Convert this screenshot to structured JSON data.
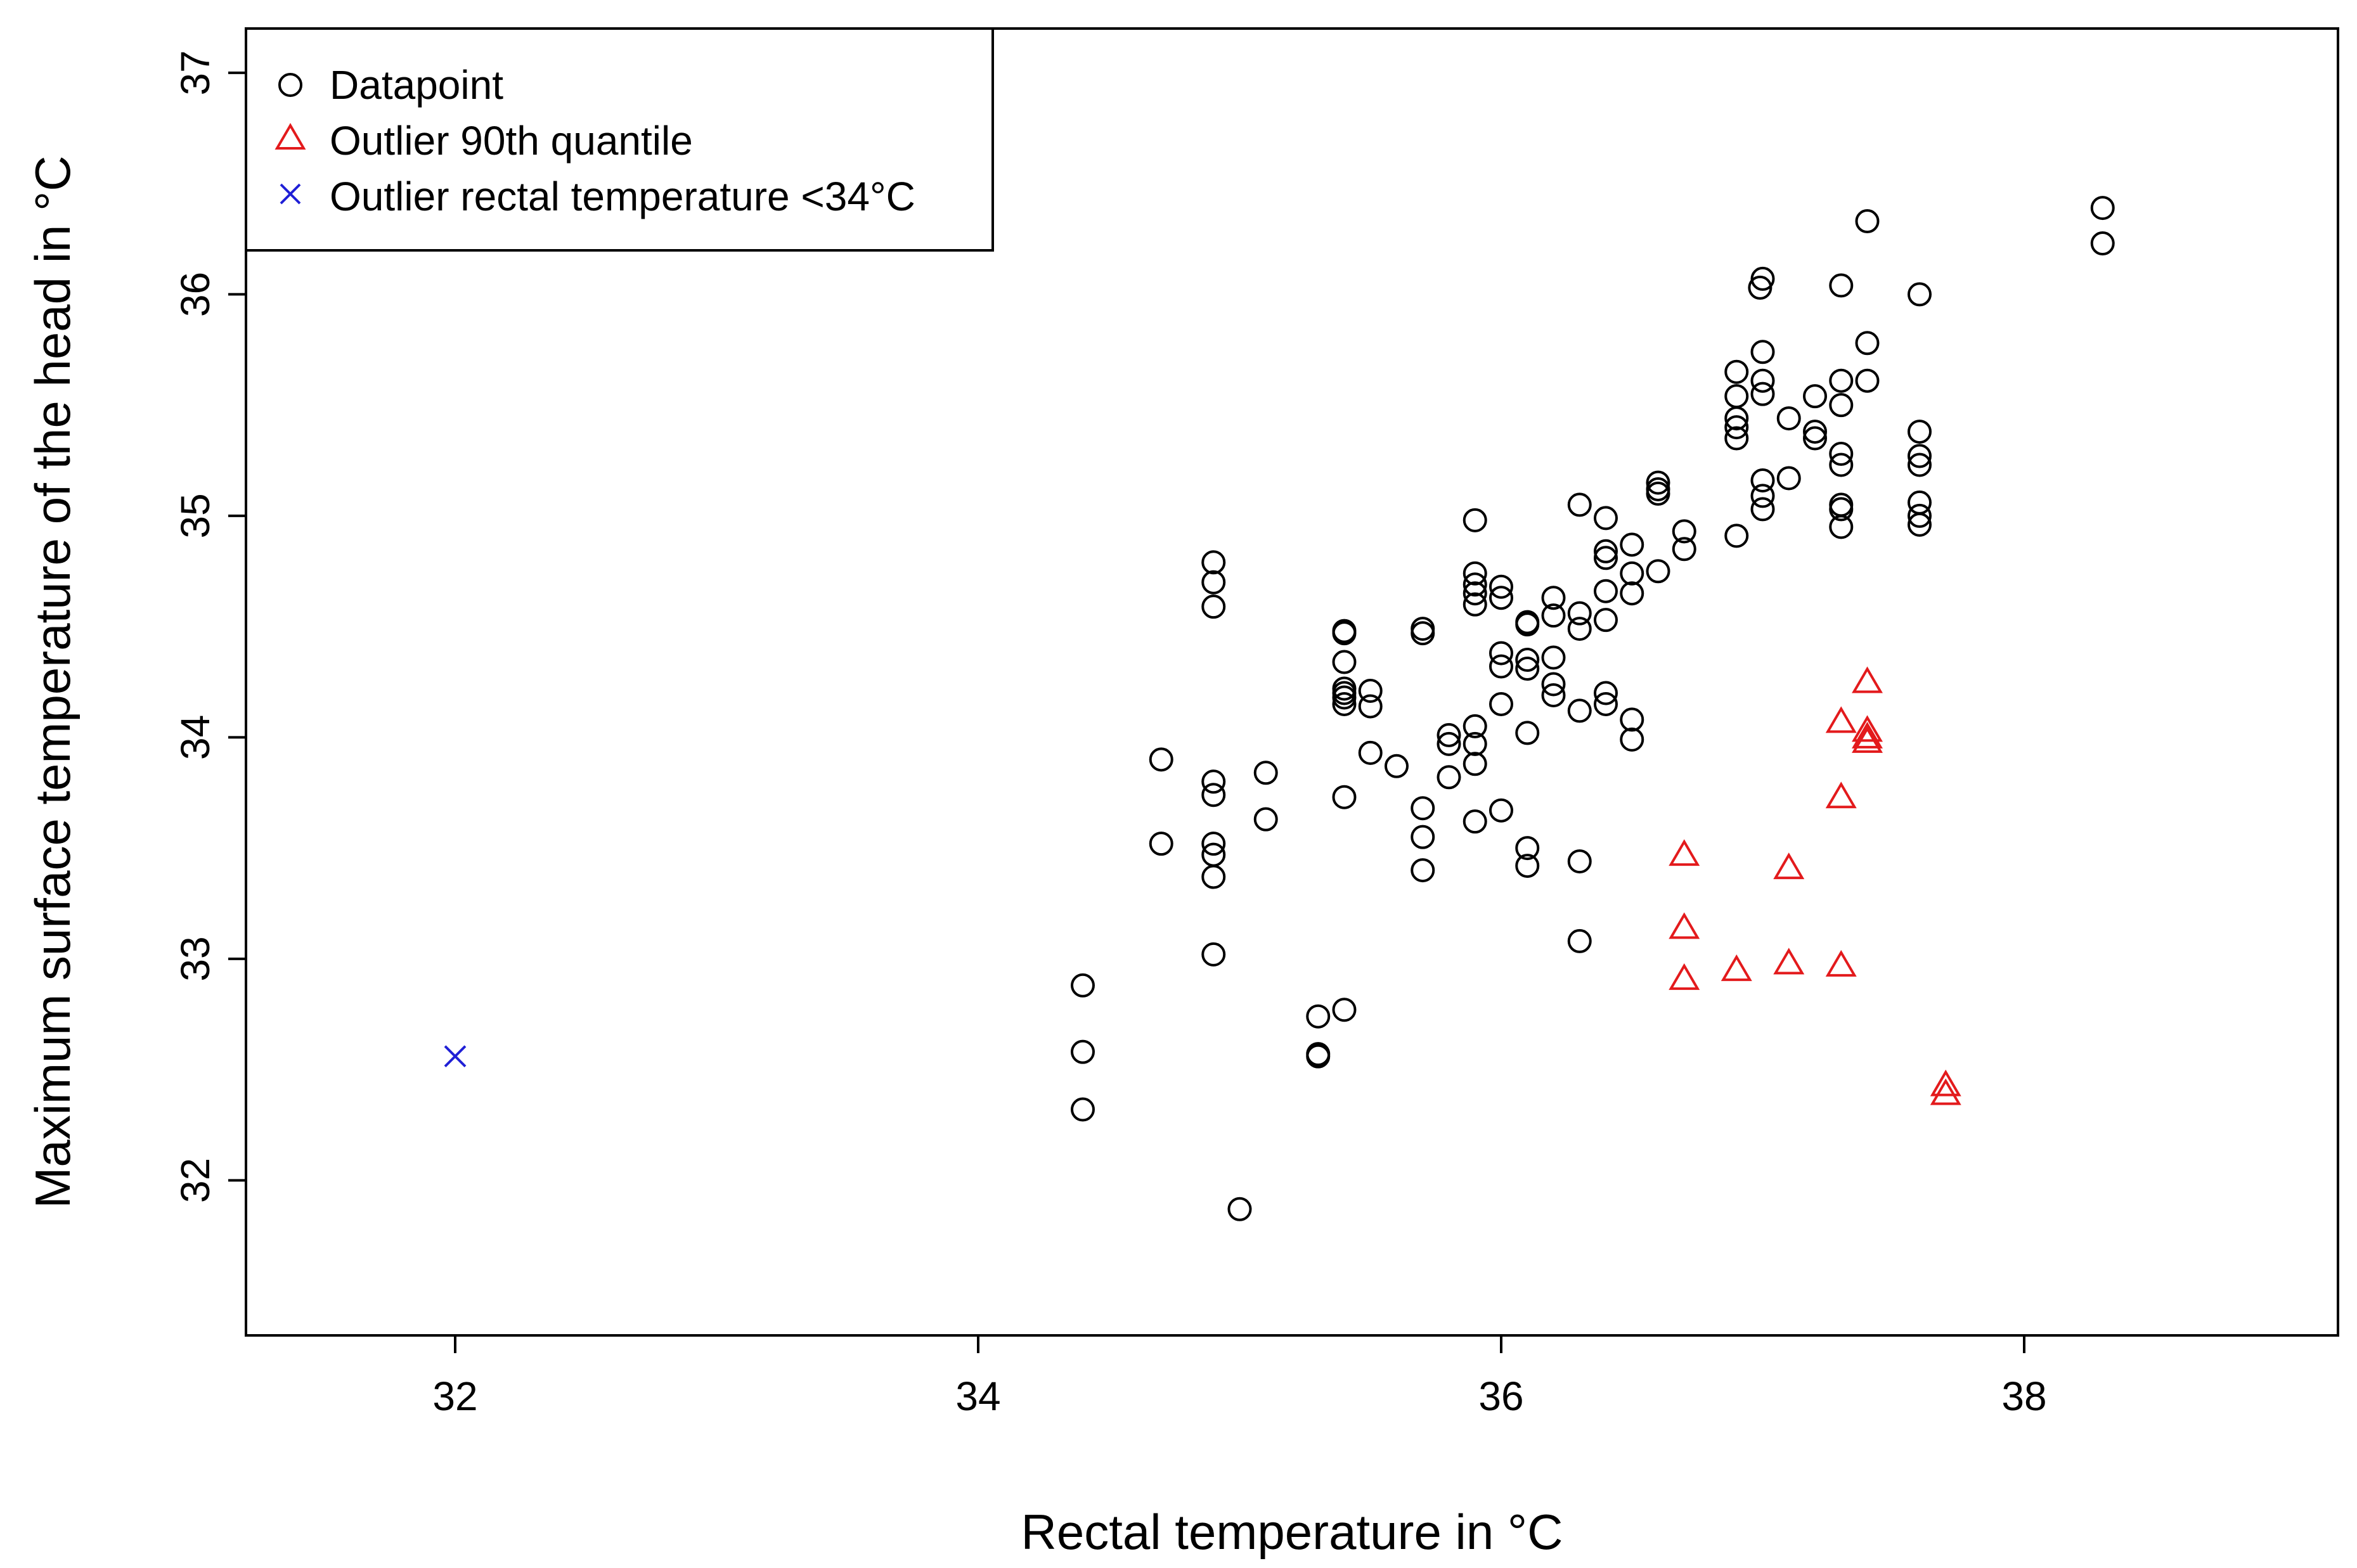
{
  "chart_data": {
    "type": "scatter",
    "title": "",
    "xlabel": "Rectal temperature in °C",
    "ylabel": "Maximum surface temperature of the head in °C",
    "xlim": [
      31.2,
      39.2
    ],
    "ylim": [
      31.3,
      37.2
    ],
    "xticks": [
      32,
      34,
      36,
      38
    ],
    "yticks": [
      32,
      33,
      34,
      35,
      36,
      37
    ],
    "grid": false,
    "legend_position": "top-left",
    "colors": {
      "datapoint": "#000000",
      "outlier_quantile": "#e31a1c",
      "outlier_rectal": "#1f1fd6"
    },
    "legend": [
      {
        "label": "Datapoint",
        "marker": "circle",
        "color": "#000000"
      },
      {
        "label": "Outlier 90th quantile",
        "marker": "triangle",
        "color": "#e31a1c"
      },
      {
        "label": "Outlier rectal temperature <34°C",
        "marker": "cross",
        "color": "#1f1fd6"
      }
    ],
    "series": [
      {
        "name": "Datapoint",
        "marker": "circle",
        "points": [
          [
            34.4,
            32.88
          ],
          [
            34.4,
            32.58
          ],
          [
            34.4,
            32.32
          ],
          [
            34.7,
            33.9
          ],
          [
            34.7,
            33.52
          ],
          [
            34.9,
            34.79
          ],
          [
            34.9,
            34.7
          ],
          [
            34.9,
            34.59
          ],
          [
            34.9,
            33.8
          ],
          [
            34.9,
            33.74
          ],
          [
            34.9,
            33.52
          ],
          [
            34.9,
            33.47
          ],
          [
            34.9,
            33.37
          ],
          [
            34.9,
            33.02
          ],
          [
            35.0,
            31.87
          ],
          [
            35.1,
            33.84
          ],
          [
            35.1,
            33.63
          ],
          [
            35.3,
            32.74
          ],
          [
            35.3,
            32.57
          ],
          [
            35.3,
            32.56
          ],
          [
            35.4,
            34.48
          ],
          [
            35.4,
            34.47
          ],
          [
            35.4,
            34.34
          ],
          [
            35.4,
            34.22
          ],
          [
            35.4,
            34.2
          ],
          [
            35.4,
            34.18
          ],
          [
            35.4,
            34.15
          ],
          [
            35.4,
            33.73
          ],
          [
            35.4,
            32.77
          ],
          [
            35.5,
            34.21
          ],
          [
            35.5,
            34.14
          ],
          [
            35.5,
            33.93
          ],
          [
            35.6,
            33.87
          ],
          [
            35.7,
            34.49
          ],
          [
            35.7,
            34.47
          ],
          [
            35.7,
            33.68
          ],
          [
            35.7,
            33.55
          ],
          [
            35.7,
            33.4
          ],
          [
            35.8,
            34.01
          ],
          [
            35.8,
            33.97
          ],
          [
            35.8,
            33.82
          ],
          [
            35.9,
            34.98
          ],
          [
            35.9,
            34.74
          ],
          [
            35.9,
            34.69
          ],
          [
            35.9,
            34.65
          ],
          [
            35.9,
            34.6
          ],
          [
            35.9,
            34.05
          ],
          [
            35.9,
            33.97
          ],
          [
            35.9,
            33.88
          ],
          [
            35.9,
            33.62
          ],
          [
            36.0,
            34.68
          ],
          [
            36.0,
            34.63
          ],
          [
            36.0,
            34.38
          ],
          [
            36.0,
            34.32
          ],
          [
            36.0,
            34.15
          ],
          [
            36.0,
            33.67
          ],
          [
            36.1,
            34.52
          ],
          [
            36.1,
            34.51
          ],
          [
            36.1,
            34.35
          ],
          [
            36.1,
            34.31
          ],
          [
            36.1,
            34.02
          ],
          [
            36.1,
            33.5
          ],
          [
            36.1,
            33.42
          ],
          [
            36.2,
            34.63
          ],
          [
            36.2,
            34.55
          ],
          [
            36.2,
            34.36
          ],
          [
            36.2,
            34.24
          ],
          [
            36.2,
            34.19
          ],
          [
            36.3,
            35.05
          ],
          [
            36.3,
            34.56
          ],
          [
            36.3,
            34.49
          ],
          [
            36.3,
            34.12
          ],
          [
            36.3,
            33.44
          ],
          [
            36.3,
            33.08
          ],
          [
            36.4,
            34.99
          ],
          [
            36.4,
            34.84
          ],
          [
            36.4,
            34.81
          ],
          [
            36.4,
            34.66
          ],
          [
            36.4,
            34.53
          ],
          [
            36.4,
            34.2
          ],
          [
            36.4,
            34.15
          ],
          [
            36.5,
            34.87
          ],
          [
            36.5,
            34.74
          ],
          [
            36.5,
            34.65
          ],
          [
            36.5,
            34.08
          ],
          [
            36.5,
            33.99
          ],
          [
            36.6,
            35.15
          ],
          [
            36.6,
            35.12
          ],
          [
            36.6,
            35.1
          ],
          [
            36.6,
            34.75
          ],
          [
            36.7,
            34.93
          ],
          [
            36.7,
            34.85
          ],
          [
            36.9,
            35.65
          ],
          [
            36.9,
            35.54
          ],
          [
            36.9,
            35.44
          ],
          [
            36.9,
            35.4
          ],
          [
            36.9,
            35.35
          ],
          [
            36.9,
            34.91
          ],
          [
            37.0,
            36.07
          ],
          [
            36.99,
            36.03
          ],
          [
            37.0,
            35.74
          ],
          [
            37.0,
            35.61
          ],
          [
            37.0,
            35.55
          ],
          [
            37.0,
            35.16
          ],
          [
            37.0,
            35.09
          ],
          [
            37.0,
            35.03
          ],
          [
            37.1,
            35.44
          ],
          [
            37.1,
            35.17
          ],
          [
            37.2,
            35.54
          ],
          [
            37.2,
            35.38
          ],
          [
            37.2,
            35.35
          ],
          [
            37.3,
            36.04
          ],
          [
            37.3,
            35.61
          ],
          [
            37.3,
            35.5
          ],
          [
            37.3,
            35.28
          ],
          [
            37.3,
            35.23
          ],
          [
            37.3,
            35.05
          ],
          [
            37.3,
            35.03
          ],
          [
            37.3,
            34.95
          ],
          [
            37.4,
            36.33
          ],
          [
            37.4,
            35.78
          ],
          [
            37.4,
            35.61
          ],
          [
            37.6,
            36.0
          ],
          [
            37.6,
            35.38
          ],
          [
            37.6,
            35.27
          ],
          [
            37.6,
            35.23
          ],
          [
            37.6,
            35.06
          ],
          [
            37.6,
            35.0
          ],
          [
            37.6,
            34.96
          ],
          [
            38.3,
            36.39
          ],
          [
            38.3,
            36.23
          ]
        ]
      },
      {
        "name": "Outlier 90th quantile",
        "marker": "triangle",
        "points": [
          [
            36.7,
            33.46
          ],
          [
            36.7,
            33.13
          ],
          [
            36.7,
            32.9
          ],
          [
            36.9,
            32.94
          ],
          [
            37.1,
            33.4
          ],
          [
            37.1,
            32.97
          ],
          [
            37.3,
            34.06
          ],
          [
            37.3,
            33.72
          ],
          [
            37.3,
            32.96
          ],
          [
            37.4,
            34.24
          ],
          [
            37.4,
            34.02
          ],
          [
            37.4,
            33.99
          ],
          [
            37.4,
            33.97
          ],
          [
            37.7,
            32.42
          ],
          [
            37.7,
            32.38
          ]
        ]
      },
      {
        "name": "Outlier rectal temperature <34°C",
        "marker": "cross",
        "points": [
          [
            32.0,
            32.56
          ]
        ]
      }
    ]
  }
}
